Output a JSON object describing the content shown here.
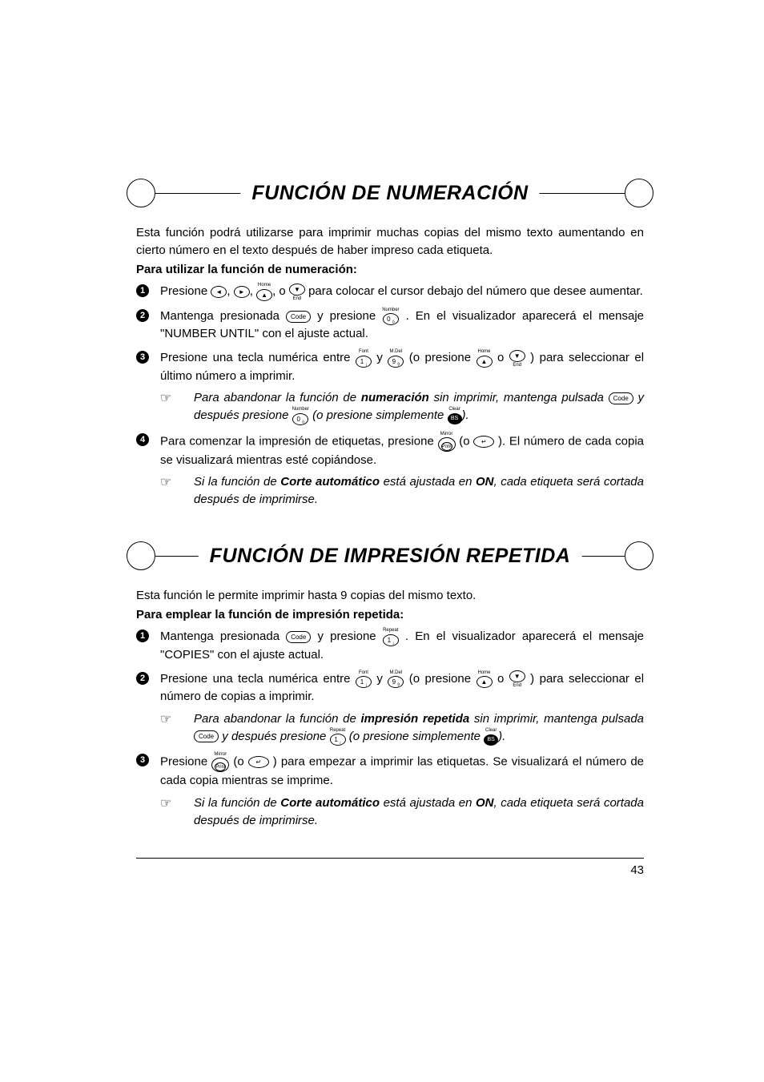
{
  "sections": [
    {
      "title": "FUNCIÓN DE NUMERACIÓN",
      "intro": "Esta función podrá utilizarse para imprimir muchas copias del mismo texto aumentando en cierto número en el texto después de haber impreso cada etiqueta.",
      "heading": "Para utilizar la función de numeración:",
      "steps": [
        {
          "num": "1",
          "pre": "Presione ",
          "post": " para colocar el cursor debajo del número que desee aumentar.",
          "keys_html": "<span class='key-stack'><span class='key-round'>◄</span></span>, <span class='key-stack'><span class='key-round'>►</span></span>, <span class='key-stack'><span class='toplabel'>Home</span><span class='key-round'>▲</span></span>, o <span class='key-stack'><span class='key-round'>▼</span><span class='botlabel'>End</span></span>"
        },
        {
          "num": "2",
          "pre": "Mantenga presionada ",
          "mid1": " y presione ",
          "post": ". En el visualizador aparecerá el mensaje \"NUMBER UNTIL\" con el ajuste actual.",
          "key1": "<span class='key'>Code</span>",
          "key2": "<span class='key-stack'><span class='toplabel'>Number</span><span class='key-round'>0 <sub style=\"font-size:5px\">ó</sub></span></span>"
        },
        {
          "num": "3",
          "pre": "Presione una tecla numérica entre ",
          "mid1": " y ",
          "mid2": " (o presione ",
          "mid3": " o ",
          "post": ") para seleccionar el último número a imprimir.",
          "k1": "<span class='key-stack'><span class='toplabel'>Font</span><span class='key-round'>1 <sub style=\"font-size:5px\">¡</sub></span></span>",
          "k2": "<span class='key-stack'><span class='toplabel'>M.Del</span><span class='key-round'>9 <sub style=\"font-size:5px\">9</sub></span></span>",
          "k3": "<span class='key-stack'><span class='toplabel'>Home</span><span class='key-round'>▲</span></span>",
          "k4": "<span class='key-stack'><span class='key-round'>▼</span><span class='botlabel'>End</span></span>",
          "note": {
            "pre": "Para abandonar la función de ",
            "bold": "numeración",
            "mid1": " sin imprimir, mantenga pulsada ",
            "mid2": " y después presione ",
            "mid3": " (o presione simplemente ",
            "post": ").",
            "k1": "<span class='key'>Code</span>",
            "k2": "<span class='key-stack'><span class='toplabel'>Number</span><span class='key-round'>0 <sub style=\"font-size:5px\">ó</sub></span></span>",
            "k3": "<span class='key-stack'><span class='toplabel'>Clear</span><span class='key-round-fill'>BS</span></span>"
          }
        },
        {
          "num": "4",
          "pre": "Para comenzar la impresión de etiquetas, presione ",
          "mid1": " (o ",
          "post": " ).  El número de cada copia se visualizará mientras esté copiándose.",
          "k1": "<span class='key-stack'><span class='toplabel'>Mirror</span><span class='key-dbl'><span class='outer'><span class='inner'>Print</span></span></span></span>",
          "k2": "<span class='key-round' style='width:26px'>↵</span>",
          "note": {
            "pre": "Si la función de ",
            "bold": "Corte automático",
            "mid1": " está ajustada en ",
            "bold2": "ON",
            "post": ", cada etiqueta será cortada después de imprimirse."
          }
        }
      ]
    },
    {
      "title": "FUNCIÓN DE IMPRESIÓN REPETIDA",
      "intro": "Esta función le permite imprimir hasta 9 copias del mismo texto.",
      "heading": "Para emplear la función de impresión repetida:",
      "steps": [
        {
          "num": "1",
          "pre": "Mantenga presionada ",
          "mid1": " y presione ",
          "post": ". En el visualizador aparecerá el mensaje \"COPIES\" con el ajuste actual.",
          "key1": "<span class='key'>Code</span>",
          "key2": "<span class='key-stack'><span class='toplabel'>Repeat</span><span class='key-round'>1 <sub style=\"font-size:5px\">¡</sub></span></span>"
        },
        {
          "num": "2",
          "pre": "Presione una tecla numérica entre ",
          "mid1": " y ",
          "mid2": " (o presione ",
          "mid3": " o ",
          "post": ") para seleccionar el número de copias a imprimir.",
          "k1": "<span class='key-stack'><span class='toplabel'>Font</span><span class='key-round'>1 <sub style=\"font-size:5px\">¡</sub></span></span>",
          "k2": "<span class='key-stack'><span class='toplabel'>M.Del</span><span class='key-round'>9 <sub style=\"font-size:5px\">9</sub></span></span>",
          "k3": "<span class='key-stack'><span class='toplabel'>Home</span><span class='key-round'>▲</span></span>",
          "k4": "<span class='key-stack'><span class='key-round'>▼</span><span class='botlabel'>End</span></span>",
          "note": {
            "pre": "Para abandonar la función de ",
            "bold": "impresión repetida",
            "mid1": " sin imprimir, mantenga pulsada ",
            "mid2": " y después presione ",
            "mid3": " (o presione simplemente ",
            "post": ").",
            "k1": "<span class='key'>Code</span>",
            "k2": "<span class='key-stack'><span class='toplabel'>Repeat</span><span class='key-round'>1 <sub style=\"font-size:5px\">¡</sub></span></span>",
            "k3": "<span class='key-stack'><span class='toplabel'>Clear</span><span class='key-round-fill'>BS</span></span>"
          }
        },
        {
          "num": "3",
          "pre": "Presione ",
          "mid1": " (o ",
          "post": " ) para empezar a imprimir las etiquetas. Se visualizará el número de cada copia mientras se imprime.",
          "k1": "<span class='key-stack'><span class='toplabel'>Mirror</span><span class='key-dbl'><span class='outer'><span class='inner'>Print</span></span></span></span>",
          "k2": "<span class='key-round' style='width:26px'>↵</span>",
          "note": {
            "pre": "Si la función de ",
            "bold": "Corte automático",
            "mid1": " está ajustada en ",
            "bold2": "ON",
            "post": ", cada etiqueta será cortada después de imprimirse."
          }
        }
      ]
    }
  ],
  "page_number": "43"
}
